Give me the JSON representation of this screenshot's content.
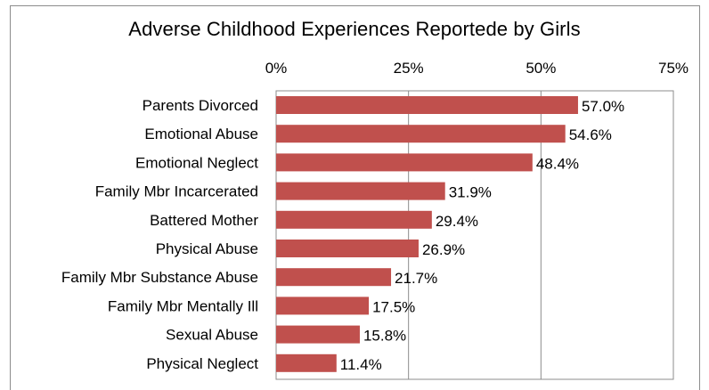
{
  "chart_data": {
    "type": "bar",
    "orientation": "horizontal",
    "title": "Adverse Childhood Experiences Reportede by Girls",
    "xlabel": "",
    "ylabel": "",
    "xlim": [
      0,
      75
    ],
    "x_ticks": [
      "0%",
      "25%",
      "50%",
      "75%"
    ],
    "x_tick_values": [
      0,
      25,
      50,
      75
    ],
    "x_axis_position": "top",
    "grid": true,
    "legend": "none",
    "bar_color": "#c0504d",
    "categories": [
      "Parents Divorced",
      "Emotional Abuse",
      "Emotional Neglect",
      "Family Mbr Incarcerated",
      "Battered Mother",
      "Physical Abuse",
      "Family Mbr Substance Abuse",
      "Family Mbr Mentally Ill",
      "Sexual Abuse",
      "Physical Neglect"
    ],
    "values": [
      57.0,
      54.6,
      48.4,
      31.9,
      29.4,
      26.9,
      21.7,
      17.5,
      15.8,
      11.4
    ],
    "data_labels": [
      "57.0%",
      "54.6%",
      "48.4%",
      "31.9%",
      "29.4%",
      "26.9%",
      "21.7%",
      "17.5%",
      "15.8%",
      "11.4%"
    ]
  }
}
